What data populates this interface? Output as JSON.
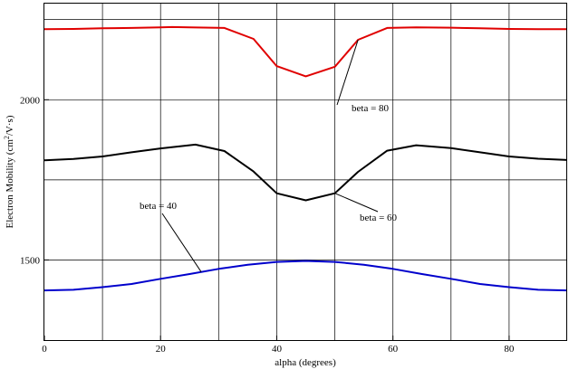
{
  "chart_data": {
    "type": "line",
    "xlabel": "alpha (degrees)",
    "ylabel": "Electron Mobility (cm",
    "ylabel_sup": "2",
    "ylabel_tail": "/V·s)",
    "xlim": [
      0,
      90
    ],
    "ylim": [
      1250,
      2300
    ],
    "x_ticks": [
      0,
      20,
      40,
      60,
      80
    ],
    "x_tick_labels": [
      "0",
      "20",
      "40",
      "60",
      "80"
    ],
    "y_ticks": [
      1500,
      2000
    ],
    "y_tick_labels": [
      "1500",
      "2000"
    ],
    "grid": true,
    "series": [
      {
        "name": "beta = 80",
        "color": "#e00000",
        "x": [
          0,
          5,
          10,
          15,
          20,
          22,
          25,
          31,
          36,
          40,
          45,
          50,
          54,
          59,
          64,
          70,
          75,
          80,
          85,
          90
        ],
        "y": [
          2220,
          2221,
          2223,
          2224,
          2226,
          2227,
          2226,
          2224,
          2190,
          2105,
          2073,
          2103,
          2187,
          2224,
          2226,
          2225,
          2223,
          2221,
          2220,
          2220
        ]
      },
      {
        "name": "beta = 60",
        "color": "#000000",
        "x": [
          0,
          5,
          10,
          15,
          20,
          26,
          31,
          36,
          40,
          45,
          50,
          54,
          59,
          64,
          70,
          75,
          80,
          85,
          90
        ],
        "y": [
          1811,
          1815,
          1823,
          1836,
          1848,
          1860,
          1840,
          1776,
          1708,
          1686,
          1708,
          1775,
          1841,
          1858,
          1849,
          1836,
          1823,
          1816,
          1812
        ]
      },
      {
        "name": "beta = 40",
        "color": "#0000cc",
        "x": [
          0,
          5,
          10,
          15,
          20,
          25,
          30,
          35,
          40,
          45,
          50,
          55,
          60,
          65,
          70,
          75,
          80,
          85,
          90
        ],
        "y": [
          1405,
          1407,
          1415,
          1425,
          1441,
          1456,
          1472,
          1485,
          1494,
          1497,
          1494,
          1485,
          1472,
          1456,
          1441,
          1425,
          1415,
          1407,
          1405
        ]
      }
    ],
    "annotations": [
      {
        "text": "beta = 80",
        "series": 0,
        "at_x": 54
      },
      {
        "text": "beta = 60",
        "series": 1,
        "at_x": 50
      },
      {
        "text": "beta = 40",
        "series": 2,
        "at_x": 27
      }
    ]
  }
}
